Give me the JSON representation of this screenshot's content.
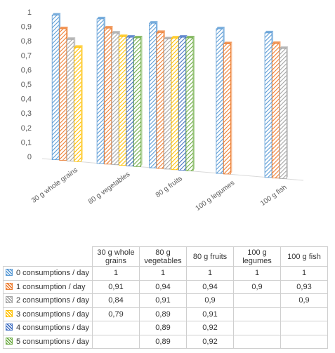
{
  "chart_data": {
    "type": "bar",
    "title": "",
    "xlabel": "",
    "ylabel": "",
    "ylim": [
      0,
      1
    ],
    "ytick_step": 0.1,
    "y_tick_labels": [
      "0",
      "0,1",
      "0,2",
      "0,3",
      "0,4",
      "0,5",
      "0,6",
      "0,7",
      "0,8",
      "0,9",
      "1"
    ],
    "categories": [
      "30 g whole grains",
      "80 g vegetables",
      "80 g fruits",
      "100 g legumes",
      "100 g fish"
    ],
    "table_headers": [
      "30 g whole grains",
      "80 g vegetables",
      "80 g fruits",
      "100 g legumes",
      "100 g fish"
    ],
    "legend_position": "table-bottom",
    "grid": false,
    "series": [
      {
        "name": "0 consumptions / day",
        "color": "#5b9bd5",
        "values": [
          1,
          1,
          1,
          1,
          1
        ],
        "labels": [
          "1",
          "1",
          "1",
          "1",
          "1"
        ]
      },
      {
        "name": "1 consumption / day",
        "color": "#ed7d31",
        "values": [
          0.91,
          0.94,
          0.94,
          0.9,
          0.93
        ],
        "labels": [
          "0,91",
          "0,94",
          "0,94",
          "0,9",
          "0,93"
        ]
      },
      {
        "name": "2 consumptions / day",
        "color": "#a5a5a5",
        "values": [
          0.84,
          0.91,
          0.9,
          null,
          0.9
        ],
        "labels": [
          "0,84",
          "0,91",
          "0,9",
          "",
          "0,9"
        ]
      },
      {
        "name": "3 consumptions / day",
        "color": "#ffc000",
        "values": [
          0.79,
          0.89,
          0.91,
          null,
          null
        ],
        "labels": [
          "0,79",
          "0,89",
          "0,91",
          "",
          ""
        ]
      },
      {
        "name": "4 consumptions / day",
        "color": "#4472c4",
        "values": [
          null,
          0.89,
          0.92,
          null,
          null
        ],
        "labels": [
          "",
          "0,89",
          "0,92",
          "",
          ""
        ]
      },
      {
        "name": "5 consumptions / day",
        "color": "#70ad47",
        "values": [
          null,
          0.89,
          0.92,
          null,
          null
        ],
        "labels": [
          "",
          "0,89",
          "0,92",
          "",
          ""
        ]
      }
    ]
  }
}
